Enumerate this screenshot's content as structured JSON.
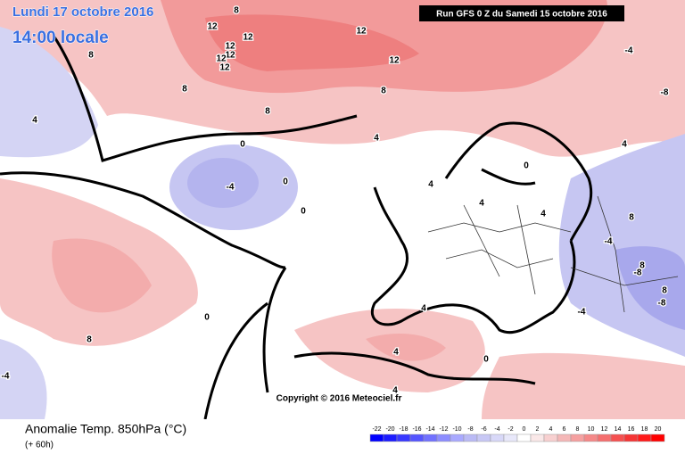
{
  "header": {
    "date": "Lundi 17 octobre 2016",
    "time": "14:00 locale",
    "run": "Run GFS 0 Z du Samedi 15 octobre 2016"
  },
  "map": {
    "contour_labels": [
      12,
      12,
      12,
      12,
      12,
      12,
      12,
      12,
      8,
      8,
      8,
      8,
      8,
      8,
      8,
      8,
      8,
      4,
      4,
      4,
      4,
      4,
      4,
      4,
      4,
      4,
      0,
      0,
      0,
      0,
      0,
      0,
      -4,
      -4,
      -4,
      -4,
      -4,
      -8,
      -8,
      -8
    ],
    "copyright": "Copyright © 2016 Meteociel.fr"
  },
  "footer": {
    "title": "Anomalie Temp. 850hPa (°C)",
    "lead": "(+ 60h)"
  },
  "scale": {
    "ticks": [
      -22,
      -20,
      -18,
      -16,
      -14,
      -12,
      -10,
      -8,
      -6,
      -4,
      -2,
      0,
      2,
      4,
      6,
      8,
      10,
      12,
      14,
      16,
      18,
      20
    ],
    "colors": [
      "#0000ff",
      "#1c1cff",
      "#3838ff",
      "#5555ff",
      "#7171ff",
      "#8d8dff",
      "#a9a9ff",
      "#babaf5",
      "#c8c8f5",
      "#d8d8f8",
      "#e8e8fa",
      "#ffffff",
      "#fae8e8",
      "#f8d0d0",
      "#f5b8b8",
      "#f5a0a0",
      "#f58888",
      "#f56e6e",
      "#f55050",
      "#f53535",
      "#ff1a1a",
      "#ff0000"
    ]
  }
}
